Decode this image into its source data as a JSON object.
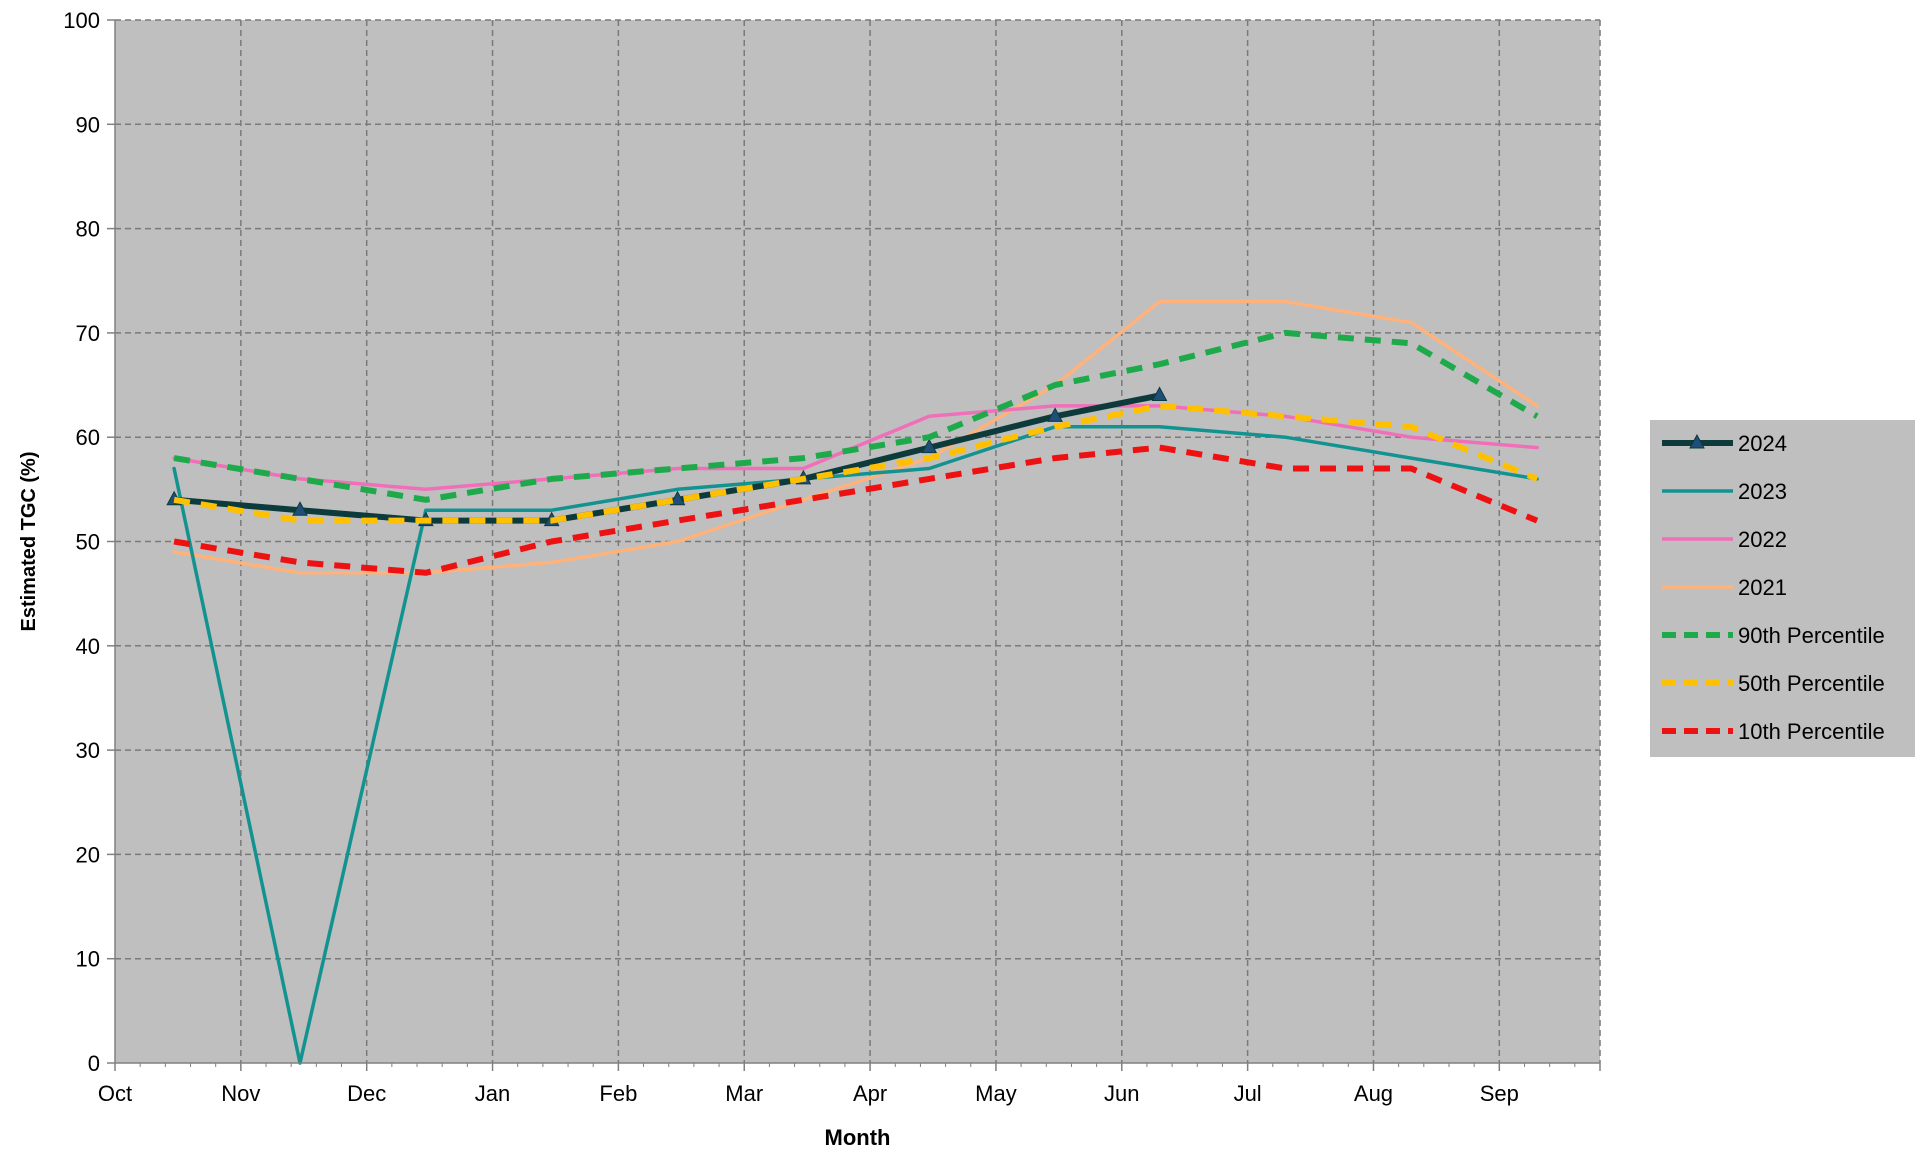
{
  "chart_data": {
    "type": "line",
    "title": "",
    "xlabel": "Month",
    "ylabel": "Estimated TGC (%)",
    "x_ticks": [
      "Oct",
      "Nov",
      "Dec",
      "Jan",
      "Feb",
      "Mar",
      "Apr",
      "May",
      "Jun",
      "Jul",
      "Aug",
      "Sep"
    ],
    "xlim": [
      0,
      11.8
    ],
    "ylim": [
      0,
      100
    ],
    "y_ticks": [
      0,
      10,
      20,
      30,
      40,
      50,
      60,
      70,
      80,
      90,
      100
    ],
    "grid": true,
    "legend_position": "right",
    "plot_background": "#bfbfbf",
    "series": [
      {
        "name": "2024",
        "color": "#0d3b3b",
        "style": "solid-thick-triangle",
        "x": [
          0.47,
          1.47,
          2.47,
          3.47,
          4.47,
          5.47,
          6.47,
          7.47,
          8.3
        ],
        "y": [
          54,
          53,
          52,
          52,
          54,
          56,
          59,
          62,
          64
        ]
      },
      {
        "name": "2023",
        "color": "#13938f",
        "style": "solid",
        "x": [
          0.47,
          1.47,
          2.47,
          3.47,
          4.47,
          5.47,
          6.47,
          7.47,
          8.3,
          9.3,
          10.3,
          11.3
        ],
        "y": [
          57,
          0,
          53,
          53,
          55,
          56,
          57,
          61,
          61,
          60,
          58,
          56
        ]
      },
      {
        "name": "2022",
        "color": "#f06fb9",
        "style": "solid",
        "x": [
          0.47,
          1.47,
          2.47,
          3.47,
          4.47,
          5.47,
          6.47,
          7.47,
          8.3,
          9.3,
          10.3,
          11.3
        ],
        "y": [
          58,
          56,
          55,
          56,
          57,
          57,
          62,
          63,
          63,
          62,
          60,
          59
        ]
      },
      {
        "name": "2021",
        "color": "#ffb27a",
        "style": "solid",
        "x": [
          0.47,
          1.47,
          2.47,
          3.47,
          4.47,
          5.47,
          6.47,
          7.47,
          8.3,
          9.3,
          10.3,
          11.3
        ],
        "y": [
          49,
          47,
          47,
          48,
          50,
          54,
          58,
          65,
          73,
          73,
          71,
          63
        ]
      },
      {
        "name": "90th Percentile",
        "color": "#1eaa4b",
        "style": "dashed",
        "x": [
          0.47,
          1.47,
          2.47,
          3.47,
          4.47,
          5.47,
          6.47,
          7.47,
          8.3,
          9.3,
          10.3,
          11.3
        ],
        "y": [
          58,
          56,
          54,
          56,
          57,
          58,
          60,
          65,
          67,
          70,
          69,
          62
        ]
      },
      {
        "name": "50th Percentile",
        "color": "#ffc000",
        "style": "dashed",
        "x": [
          0.47,
          1.47,
          2.47,
          3.47,
          4.47,
          5.47,
          6.47,
          7.47,
          8.3,
          9.3,
          10.3,
          11.3
        ],
        "y": [
          54,
          52,
          52,
          52,
          54,
          56,
          58,
          61,
          63,
          62,
          61,
          56
        ]
      },
      {
        "name": "10th Percentile",
        "color": "#ee1111",
        "style": "dashed",
        "x": [
          0.47,
          1.47,
          2.47,
          3.47,
          4.47,
          5.47,
          6.47,
          7.47,
          8.3,
          9.3,
          10.3,
          11.3
        ],
        "y": [
          50,
          48,
          47,
          50,
          52,
          54,
          56,
          58,
          59,
          57,
          57,
          52
        ]
      }
    ]
  }
}
